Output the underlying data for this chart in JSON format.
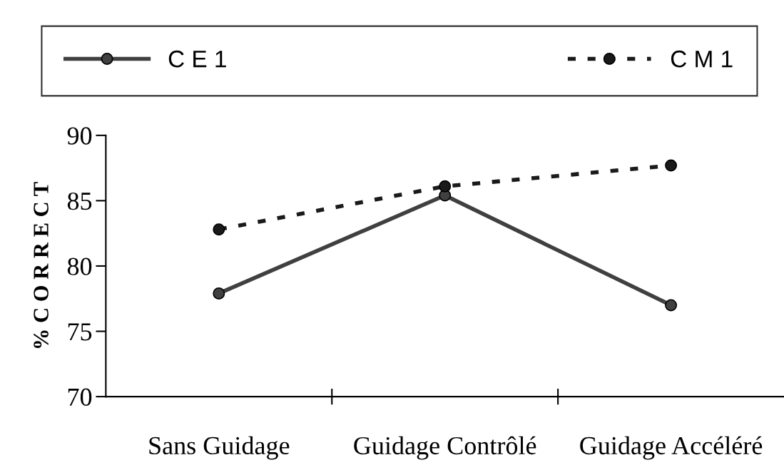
{
  "chart_data": {
    "type": "line",
    "ylabel": "% C O R R E C T",
    "categories": [
      "Sans Guidage",
      "Guidage Contrôlé",
      "Guidage Accéléré"
    ],
    "series": [
      {
        "name": "C E 1",
        "color": "#404040",
        "values": [
          77.9,
          85.4,
          77.0
        ],
        "line_style": "solid",
        "marker": "circle"
      },
      {
        "name": "C M 1",
        "color": "#1a1a1a",
        "values": [
          82.8,
          86.1,
          87.7
        ],
        "line_style": "dashed",
        "marker": "circle"
      }
    ],
    "ylim": [
      70,
      90
    ],
    "yticks": [
      70,
      75,
      80,
      85,
      90
    ],
    "grid": false,
    "legend": "top"
  }
}
